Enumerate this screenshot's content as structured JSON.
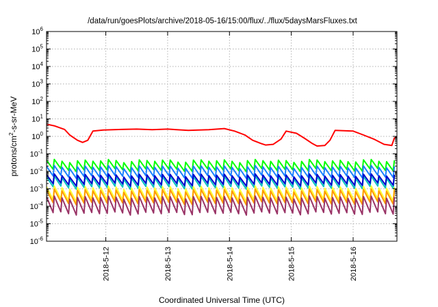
{
  "chart_data": {
    "type": "line",
    "title": "/data/run/goesPlots/archive/2018-05-16/15:00/flux/../flux/5daysMarsFluxes.txt",
    "xlabel": "Coordinated Universal Time (UTC)",
    "ylabel": "protons/cm2-s-sr-MeV",
    "ylabel_parts": {
      "pre": "protons/cm",
      "sup": "2",
      "post": "-s-sr-MeV"
    },
    "yscale": "log",
    "ylim_exp": [
      -6,
      6
    ],
    "ytick_labels": [
      {
        "exp": -6,
        "base": "10",
        "sup": "-6"
      },
      {
        "exp": -5,
        "base": "10",
        "sup": "-5"
      },
      {
        "exp": -4,
        "base": "10",
        "sup": "-4"
      },
      {
        "exp": -3,
        "base": "10",
        "sup": "-3"
      },
      {
        "exp": -2,
        "base": "10",
        "sup": "-2"
      },
      {
        "exp": -1,
        "base": "10",
        "sup": "-1"
      },
      {
        "exp": 0,
        "base": "10",
        "sup": "0"
      },
      {
        "exp": 1,
        "base": "10",
        "sup": "1"
      },
      {
        "exp": 2,
        "base": "10",
        "sup": "2"
      },
      {
        "exp": 3,
        "base": "10",
        "sup": "3"
      },
      {
        "exp": 4,
        "base": "10",
        "sup": "4"
      },
      {
        "exp": 5,
        "base": "10",
        "sup": "5"
      },
      {
        "exp": 6,
        "base": "10",
        "sup": "6"
      }
    ],
    "xlim": [
      "2018-05-11T01:00",
      "2018-05-16T17:00"
    ],
    "xticks": [
      {
        "label": "2018-5-12",
        "t": "2018-05-12T00:00"
      },
      {
        "label": "2018-5-13",
        "t": "2018-05-13T00:00"
      },
      {
        "label": "2018-5-14",
        "t": "2018-05-14T00:00"
      },
      {
        "label": "2018-5-15",
        "t": "2018-05-15T00:00"
      },
      {
        "label": "2018-5-16",
        "t": "2018-05-16T00:00"
      }
    ],
    "grid": true,
    "grid_style": "dotted",
    "sawtooth_period_hours": 3,
    "series": [
      {
        "color": "#ff0000",
        "style": "smooth",
        "points": [
          [
            "2018-05-11T01:00",
            5.0
          ],
          [
            "2018-05-11T04:00",
            4.0
          ],
          [
            "2018-05-11T08:00",
            2.5
          ],
          [
            "2018-05-11T10:00",
            1.2
          ],
          [
            "2018-05-11T13:00",
            0.6
          ],
          [
            "2018-05-11T15:00",
            0.45
          ],
          [
            "2018-05-11T17:00",
            0.6
          ],
          [
            "2018-05-11T19:00",
            2.0
          ],
          [
            "2018-05-11T23:00",
            2.3
          ],
          [
            "2018-05-12T06:00",
            2.5
          ],
          [
            "2018-05-12T12:00",
            2.6
          ],
          [
            "2018-05-12T18:00",
            2.4
          ],
          [
            "2018-05-13T00:00",
            2.6
          ],
          [
            "2018-05-13T08:00",
            2.2
          ],
          [
            "2018-05-13T16:00",
            2.4
          ],
          [
            "2018-05-13T22:00",
            2.8
          ],
          [
            "2018-05-14T02:00",
            2.0
          ],
          [
            "2018-05-14T06:00",
            1.2
          ],
          [
            "2018-05-14T09:00",
            0.6
          ],
          [
            "2018-05-14T12:00",
            0.4
          ],
          [
            "2018-05-14T14:00",
            0.32
          ],
          [
            "2018-05-14T17:00",
            0.35
          ],
          [
            "2018-05-14T20:00",
            0.7
          ],
          [
            "2018-05-14T22:00",
            2.0
          ],
          [
            "2018-05-15T02:00",
            1.5
          ],
          [
            "2018-05-15T05:00",
            0.8
          ],
          [
            "2018-05-15T08:00",
            0.4
          ],
          [
            "2018-05-15T10:00",
            0.28
          ],
          [
            "2018-05-15T13:00",
            0.3
          ],
          [
            "2018-05-15T15:00",
            0.6
          ],
          [
            "2018-05-15T17:00",
            2.2
          ],
          [
            "2018-05-16T00:00",
            2.0
          ],
          [
            "2018-05-16T04:00",
            1.2
          ],
          [
            "2018-05-16T08:00",
            0.7
          ],
          [
            "2018-05-16T12:00",
            0.35
          ],
          [
            "2018-05-16T15:00",
            0.3
          ],
          [
            "2018-05-16T16:00",
            0.8
          ],
          [
            "2018-05-16T17:00",
            0.9
          ]
        ]
      },
      {
        "color": "#00ff00",
        "style": "sawtooth",
        "peak": 0.04,
        "trough": 0.012
      },
      {
        "color": "#1a80ff",
        "style": "sawtooth",
        "peak": 0.018,
        "trough": 0.005
      },
      {
        "color": "#00c0c0",
        "style": "sawtooth",
        "peak": 0.0045,
        "trough": 0.0012
      },
      {
        "color": "#0000cc",
        "style": "sawtooth",
        "peak": 0.006,
        "trough": 0.0018
      },
      {
        "color": "#ffff33",
        "style": "sawtooth",
        "peak": 0.0012,
        "trough": 0.00022
      },
      {
        "color": "#ff9900",
        "style": "sawtooth",
        "peak": 0.0008,
        "trough": 0.00015
      },
      {
        "color": "#993366",
        "style": "sawtooth",
        "peak": 0.00032,
        "trough": 4e-05
      }
    ]
  },
  "colors": {
    "axis": "#000000",
    "grid": "#b0b0b0"
  }
}
